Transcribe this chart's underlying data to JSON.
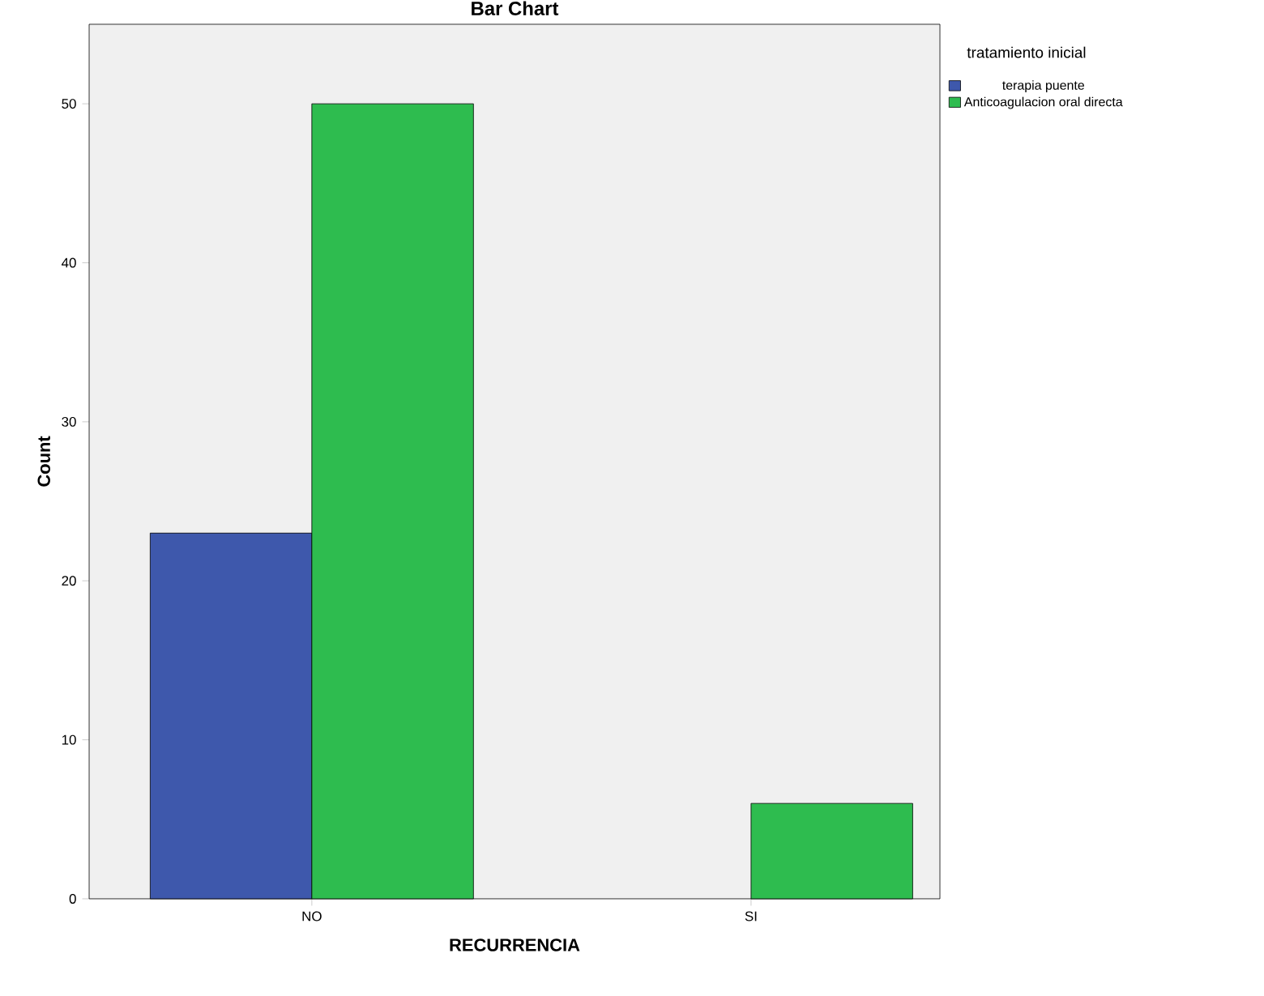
{
  "chart_data": {
    "type": "bar",
    "title": "Bar Chart",
    "xlabel": "RECURRENCIA",
    "ylabel": "Count",
    "legend_title": "tratamiento inicial",
    "categories": [
      "NO",
      "SI"
    ],
    "series": [
      {
        "name": "terapia puente",
        "color": "#3e58ac",
        "values": [
          23,
          null
        ]
      },
      {
        "name": "Anticoagulacion oral directa",
        "color": "#2ebc4f",
        "values": [
          50,
          6
        ]
      }
    ],
    "ylim": [
      0,
      55
    ],
    "yticks": [
      0,
      10,
      20,
      30,
      40,
      50
    ],
    "grid": false,
    "legend": "top right"
  }
}
